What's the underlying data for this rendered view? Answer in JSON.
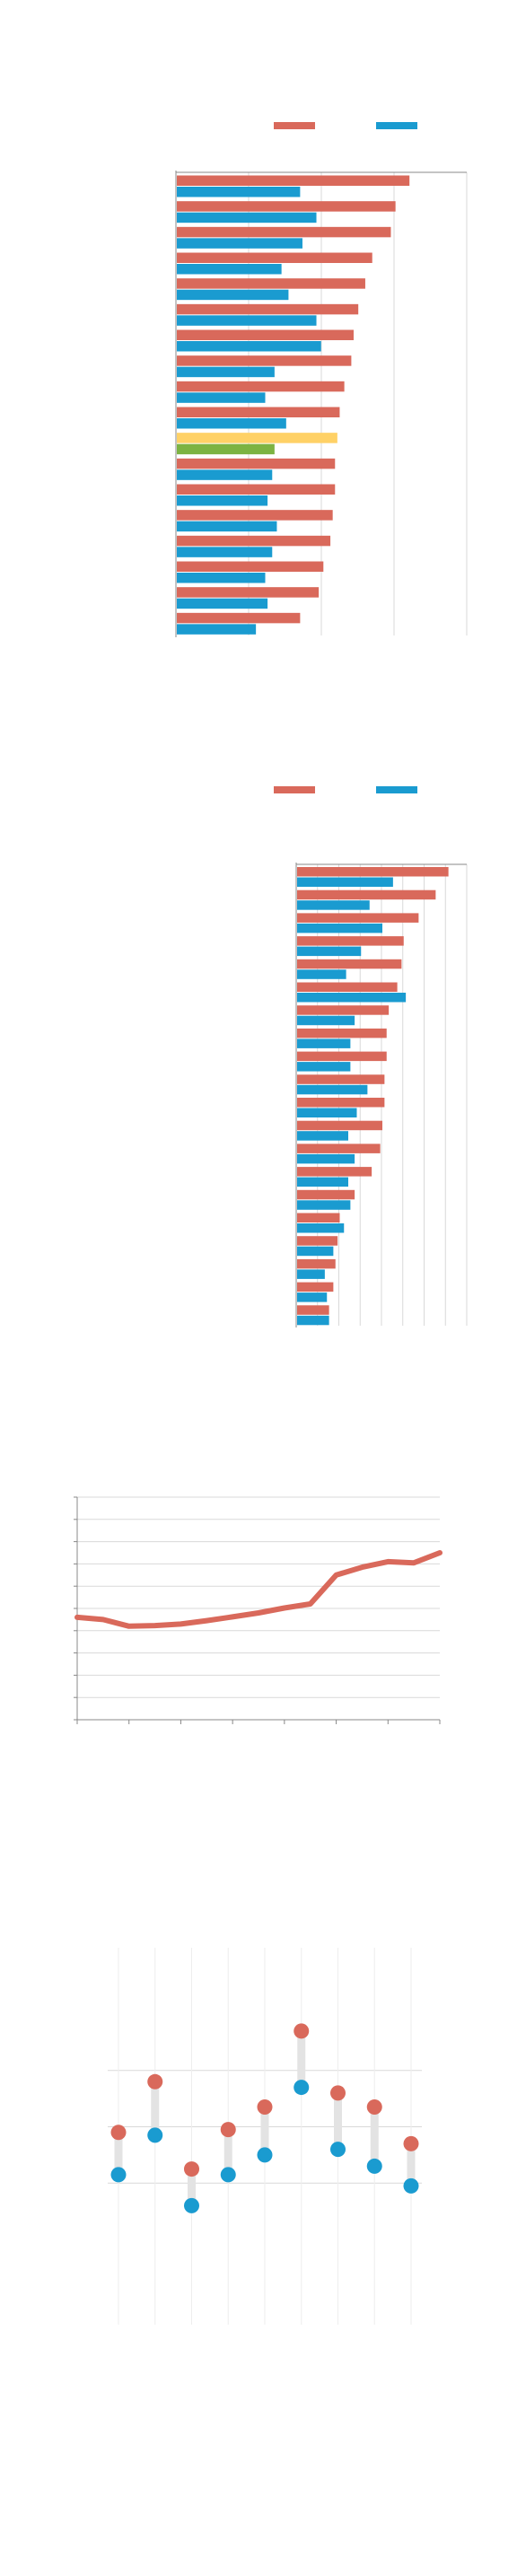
{
  "colors": {
    "series_a": "#d9695b",
    "series_b": "#1a9bd0",
    "highlight_a": "#ffd166",
    "highlight_b": "#7cb342",
    "grid": "#d9d9d9",
    "axis": "#888888",
    "connector": "#e3e3e3"
  },
  "chart_data": [
    {
      "type": "bar",
      "orientation": "horizontal",
      "categories": [
        "",
        "",
        "",
        "",
        "",
        "",
        "",
        "",
        "",
        "",
        "",
        "",
        "",
        "",
        "",
        "",
        "",
        ""
      ],
      "series": [
        {
          "values": [
            100,
            94,
            92,
            84,
            81,
            78,
            76,
            75,
            72,
            70,
            69,
            68,
            68,
            67,
            66,
            63,
            61,
            53
          ]
        },
        {
          "values": [
            53,
            60,
            54,
            45,
            48,
            60,
            62,
            42,
            38,
            47,
            42,
            41,
            39,
            43,
            41,
            38,
            39,
            34
          ]
        }
      ],
      "highlight_index": 10,
      "xlim": [
        0,
        125
      ],
      "grid": true,
      "legend": "top-right"
    },
    {
      "type": "bar",
      "orientation": "horizontal",
      "categories": [
        "",
        "",
        "",
        "",
        "",
        "",
        "",
        "",
        "",
        "",
        "",
        "",
        "",
        "",
        "",
        "",
        "",
        "",
        "",
        ""
      ],
      "series": [
        {
          "values": [
            71,
            65,
            57,
            50,
            49,
            47,
            43,
            42,
            42,
            41,
            41,
            40,
            39,
            35,
            27,
            20,
            19,
            18,
            17,
            15
          ]
        },
        {
          "values": [
            45,
            34,
            40,
            30,
            23,
            51,
            27,
            25,
            25,
            33,
            28,
            24,
            27,
            24,
            25,
            22,
            17,
            13,
            14,
            15
          ]
        }
      ],
      "xlim": [
        0,
        80
      ],
      "grid": true,
      "legend": "top-right"
    },
    {
      "type": "line",
      "x": [
        0,
        1,
        2,
        3,
        4,
        5,
        6,
        7,
        8,
        9,
        10,
        11,
        12,
        13,
        14
      ],
      "series": [
        {
          "values": [
            46,
            45,
            42,
            42.3,
            43,
            44.5,
            46.2,
            48,
            50.2,
            52,
            65,
            68.5,
            71,
            70.5,
            75
          ]
        }
      ],
      "ylim": [
        0,
        100
      ],
      "grid": true
    },
    {
      "type": "scatter",
      "subtype": "dumbbell",
      "categories": [
        "",
        "",
        "",
        "",
        "",
        "",
        "",
        "",
        ""
      ],
      "series": [
        {
          "values": [
            38,
            56,
            25,
            39,
            47,
            74,
            52,
            47,
            34
          ]
        },
        {
          "values": [
            23,
            37,
            12,
            23,
            30,
            54,
            32,
            26,
            19
          ]
        }
      ],
      "ylim": [
        0,
        80
      ],
      "grid": true
    }
  ]
}
